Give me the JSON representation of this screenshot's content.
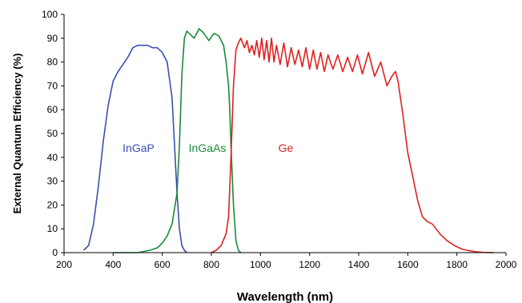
{
  "chart_data": {
    "type": "line",
    "xlabel": "Wavelength (nm)",
    "ylabel": "External Quantum Efficiency  (%)",
    "xlim": [
      200,
      2000
    ],
    "ylim": [
      0,
      100
    ],
    "x_ticks": [
      200,
      400,
      600,
      800,
      1000,
      1200,
      1400,
      1600,
      1800,
      2000
    ],
    "y_ticks": [
      0,
      10,
      20,
      30,
      40,
      50,
      60,
      70,
      80,
      90,
      100
    ],
    "x_tick_labels": [
      "200",
      "400",
      "600",
      "800",
      "1000",
      "1200",
      "1400",
      "1600",
      "1800",
      "2000"
    ],
    "y_tick_labels": [
      "0",
      "10",
      "20",
      "30",
      "40",
      "50",
      "60",
      "70",
      "80",
      "90",
      "100"
    ],
    "grid": false,
    "legend": "none",
    "series": [
      {
        "name": "InGaP",
        "color": "#3a4fb0",
        "x": [
          280,
          300,
          320,
          340,
          360,
          380,
          400,
          420,
          440,
          460,
          480,
          500,
          520,
          540,
          560,
          580,
          600,
          620,
          640,
          650,
          660,
          670,
          680,
          690,
          700
        ],
        "y": [
          1,
          3,
          12,
          28,
          47,
          62,
          72,
          76,
          79,
          82,
          86,
          87,
          87,
          87,
          86,
          86,
          84,
          80,
          65,
          45,
          25,
          10,
          3,
          1,
          0
        ]
      },
      {
        "name": "InGaAs",
        "color": "#1a8a3a",
        "x": [
          400,
          450,
          500,
          550,
          580,
          600,
          620,
          640,
          660,
          670,
          680,
          690,
          700,
          710,
          730,
          750,
          770,
          790,
          810,
          830,
          850,
          860,
          870,
          875,
          880,
          890,
          900,
          910,
          920
        ],
        "y": [
          0,
          0,
          0,
          1,
          2,
          4,
          7,
          12,
          25,
          45,
          75,
          90,
          93,
          92,
          90,
          94,
          92,
          89,
          92,
          91,
          87,
          80,
          70,
          60,
          45,
          20,
          5,
          1,
          0
        ]
      },
      {
        "name": "Ge",
        "color": "#e02020",
        "x": [
          800,
          820,
          840,
          860,
          870,
          880,
          890,
          900,
          910,
          920,
          935,
          945,
          955,
          965,
          975,
          985,
          995,
          1005,
          1015,
          1025,
          1035,
          1045,
          1055,
          1065,
          1080,
          1095,
          1110,
          1125,
          1140,
          1155,
          1170,
          1185,
          1200,
          1215,
          1230,
          1245,
          1260,
          1275,
          1295,
          1315,
          1335,
          1355,
          1375,
          1395,
          1415,
          1440,
          1465,
          1490,
          1515,
          1535,
          1550,
          1560,
          1580,
          1600,
          1620,
          1640,
          1660,
          1680,
          1700,
          1730,
          1760,
          1790,
          1820,
          1850,
          1880,
          1910,
          1950
        ],
        "y": [
          0,
          1,
          3,
          8,
          15,
          40,
          70,
          85,
          88,
          90,
          86,
          89,
          84,
          87,
          83,
          89,
          82,
          90,
          81,
          89,
          80,
          90,
          80,
          87,
          79,
          88,
          78,
          86,
          79,
          85,
          78,
          86,
          77,
          85,
          77,
          84,
          76,
          83,
          77,
          83,
          76,
          82,
          76,
          83,
          75,
          84,
          74,
          80,
          70,
          74,
          76,
          72,
          58,
          42,
          32,
          22,
          15,
          13,
          12,
          8,
          5,
          3,
          1.5,
          0.8,
          0.3,
          0.1,
          0
        ]
      }
    ]
  }
}
